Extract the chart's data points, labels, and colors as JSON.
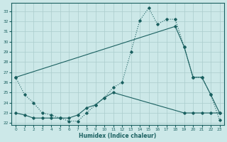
{
  "xlabel": "Humidex (Indice chaleur)",
  "background_color": "#cce8e8",
  "grid_color": "#aacccc",
  "line_color": "#1a6060",
  "xlim": [
    -0.5,
    23.5
  ],
  "ylim": [
    21.8,
    33.8
  ],
  "yticks": [
    22,
    23,
    24,
    25,
    26,
    27,
    28,
    29,
    30,
    31,
    32,
    33
  ],
  "xticks": [
    0,
    1,
    2,
    3,
    4,
    5,
    6,
    7,
    8,
    9,
    10,
    11,
    12,
    13,
    14,
    15,
    16,
    17,
    18,
    19,
    20,
    21,
    22,
    23
  ],
  "line1_x": [
    0,
    1,
    2,
    3,
    4,
    5,
    6,
    7,
    8,
    9,
    10,
    11,
    12,
    13,
    14,
    15,
    16,
    17,
    18,
    19,
    20,
    21,
    22,
    23
  ],
  "line1_y": [
    26.5,
    24.8,
    24.0,
    23.0,
    22.8,
    22.5,
    22.2,
    22.2,
    23.0,
    23.8,
    24.5,
    25.5,
    26.0,
    29.0,
    32.1,
    33.3,
    31.7,
    32.2,
    32.2,
    29.5,
    26.5,
    26.5,
    24.8,
    22.3
  ],
  "line2_x": [
    0,
    18,
    19,
    20,
    21,
    22,
    23
  ],
  "line2_y": [
    26.5,
    31.5,
    29.5,
    26.5,
    26.5,
    24.8,
    23.0
  ],
  "line3_x": [
    0,
    1,
    2,
    3,
    4,
    5,
    6,
    7,
    8,
    9,
    10,
    11,
    19,
    20,
    21,
    22,
    23
  ],
  "line3_y": [
    23.0,
    22.8,
    22.5,
    22.5,
    22.5,
    22.5,
    22.5,
    22.8,
    23.5,
    23.8,
    24.5,
    25.0,
    23.0,
    23.0,
    23.0,
    23.0,
    23.0
  ]
}
